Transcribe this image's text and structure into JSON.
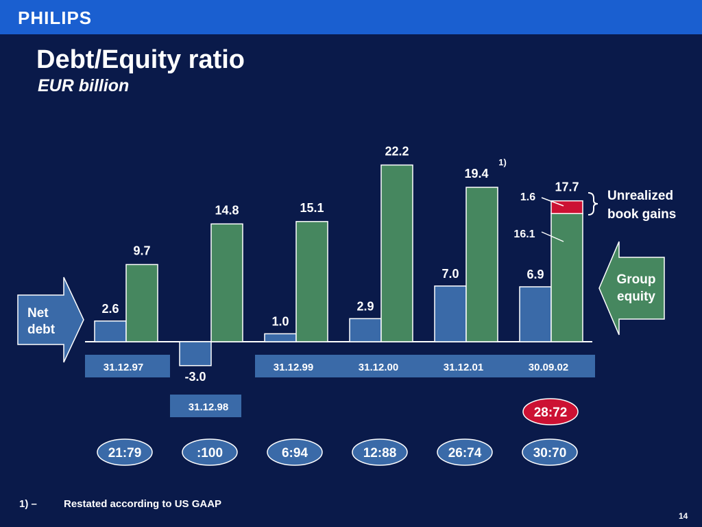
{
  "header": {
    "logo": "PHILIPS"
  },
  "title": "Debt/Equity ratio",
  "subtitle": "EUR billion",
  "chart_data": {
    "type": "bar",
    "categories": [
      "31.12.97",
      "31.12.98",
      "31.12.99",
      "31.12.00",
      "31.12.01",
      "30.09.02"
    ],
    "series": [
      {
        "name": "Net debt",
        "values": [
          2.6,
          -3.0,
          1.0,
          2.9,
          7.0,
          6.9
        ],
        "labels": [
          "2.6",
          "-3.0",
          "1.0",
          "2.9",
          "7.0",
          "6.9"
        ]
      },
      {
        "name": "Group equity",
        "values": [
          9.7,
          14.8,
          15.1,
          22.2,
          19.4,
          16.1
        ],
        "labels": [
          "9.7",
          "14.8",
          "15.1",
          "22.2",
          "19.4",
          "16.1"
        ]
      },
      {
        "name": "Unrealized book gains",
        "values": [
          0,
          0,
          0,
          0,
          0,
          1.6
        ],
        "labels": [
          "",
          "",
          "",
          "",
          "",
          "1.6"
        ]
      }
    ],
    "equity_totals": [
      "9.7",
      "14.8",
      "15.1",
      "22.2",
      "19.4",
      "17.7"
    ],
    "ratios": [
      "21:79",
      ":100",
      "6:94",
      "12:88",
      "26:74",
      "30:70"
    ],
    "extra_ratio": "28:72",
    "footnote_marker": "1)",
    "annotations": {
      "net_debt": "Net debt",
      "group_equity": "Group equity",
      "unrealized_line1": "Unrealized",
      "unrealized_line2": "book gains"
    },
    "colors": {
      "net_debt": "#3a6aa8",
      "equity": "#46875f",
      "gains": "#cc1133",
      "ratio_oval": "#3a6aa8",
      "extra_oval": "#cc1133"
    }
  },
  "footnote": {
    "number": "1) –",
    "text": "Restated according to US GAAP"
  },
  "page_number": "14"
}
